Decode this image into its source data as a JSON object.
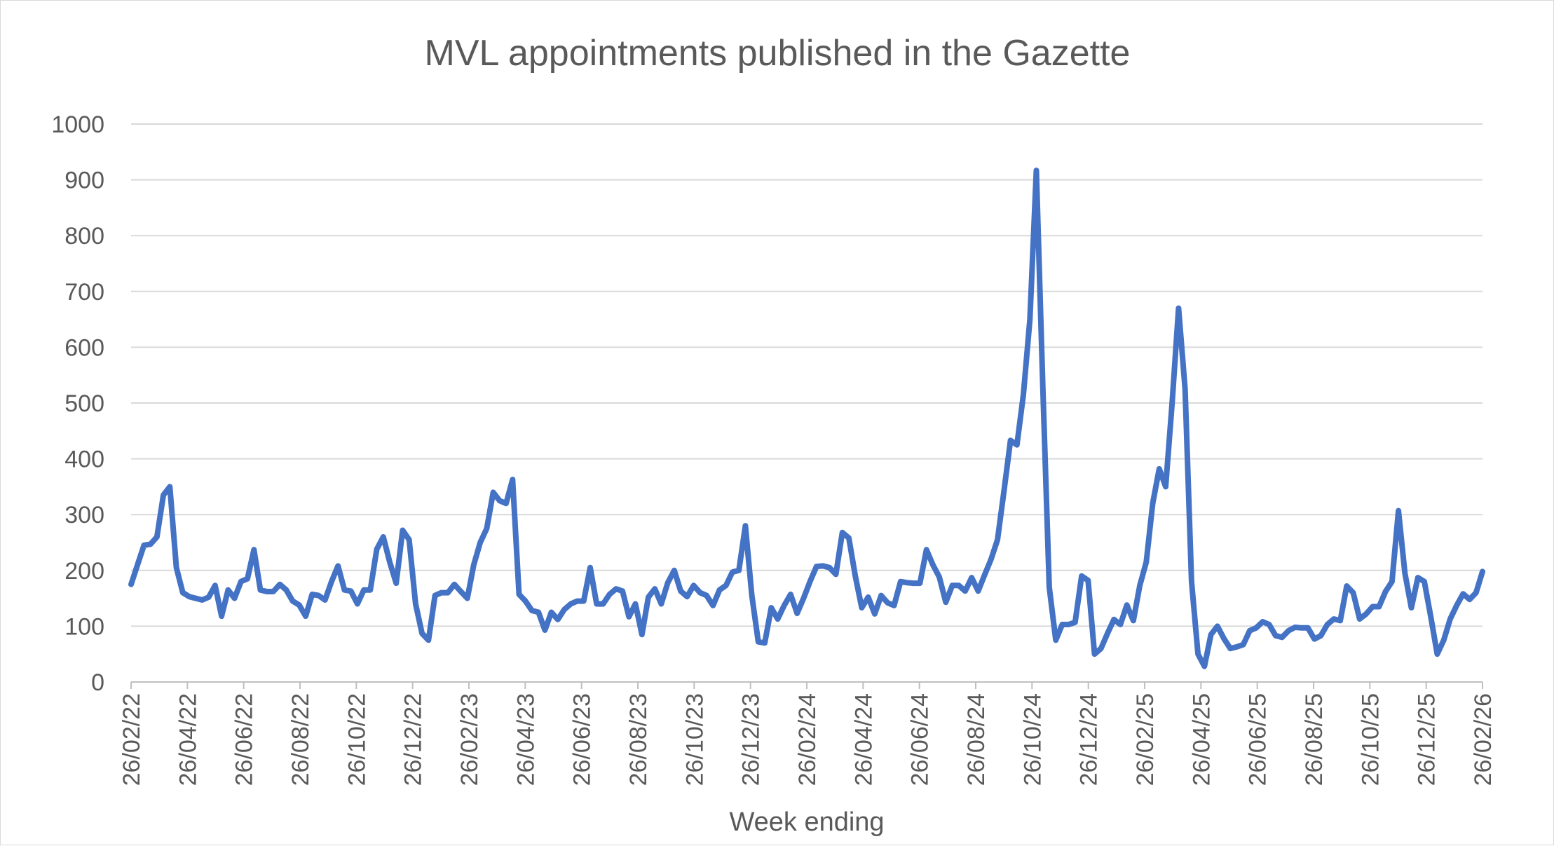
{
  "chart_data": {
    "type": "line",
    "title": "MVL appointments published in the Gazette",
    "xlabel": "Week ending",
    "ylabel": "",
    "ylim": [
      0,
      1000
    ],
    "yticks": [
      0,
      100,
      200,
      300,
      400,
      500,
      600,
      700,
      800,
      900,
      1000
    ],
    "xticks": [
      "26/02/22",
      "26/04/22",
      "26/06/22",
      "26/08/22",
      "26/10/22",
      "26/12/22",
      "26/02/23",
      "26/04/23",
      "26/06/23",
      "26/08/23",
      "26/10/23",
      "26/12/23",
      "26/02/24",
      "26/04/24",
      "26/06/24",
      "26/08/24",
      "26/10/24",
      "26/12/24",
      "26/02/25",
      "26/04/25",
      "26/06/25",
      "26/08/25",
      "26/10/25",
      "26/12/25",
      "26/02/26"
    ],
    "grid": true,
    "legend": "none",
    "color": "#4472c4",
    "series": [
      {
        "values": [
          175,
          210,
          245,
          247,
          260,
          335,
          350,
          205,
          160,
          153,
          150,
          147,
          152,
          173,
          118,
          165,
          150,
          180,
          185,
          237,
          165,
          162,
          162,
          175,
          165,
          145,
          138,
          118,
          157,
          155,
          147,
          180,
          208,
          165,
          163,
          140,
          165,
          165,
          238,
          260,
          215,
          177,
          272,
          255,
          140,
          87,
          75,
          155,
          160,
          160,
          175,
          162,
          150,
          210,
          250,
          275,
          340,
          325,
          320,
          363,
          157,
          145,
          128,
          125,
          93,
          125,
          112,
          130,
          140,
          145,
          145,
          205,
          140,
          140,
          157,
          167,
          163,
          117,
          140,
          85,
          152,
          167,
          140,
          178,
          200,
          163,
          153,
          173,
          160,
          155,
          137,
          165,
          173,
          197,
          200,
          280,
          155,
          72,
          70,
          133,
          113,
          137,
          157,
          123,
          150,
          180,
          207,
          208,
          205,
          193,
          268,
          258,
          190,
          133,
          152,
          122,
          155,
          142,
          137,
          180,
          178,
          177,
          177,
          237,
          210,
          188,
          143,
          173,
          173,
          163,
          187,
          163,
          192,
          220,
          255,
          343,
          433,
          425,
          515,
          650,
          917,
          530,
          170,
          75,
          103,
          103,
          107,
          190,
          182,
          50,
          60,
          87,
          112,
          103,
          138,
          110,
          173,
          215,
          320,
          382,
          350,
          500,
          670,
          525,
          180,
          50,
          28,
          85,
          100,
          78,
          60,
          63,
          67,
          92,
          97,
          108,
          103,
          83,
          80,
          92,
          98,
          97,
          97,
          77,
          83,
          103,
          113,
          110,
          172,
          160,
          113,
          122,
          135,
          135,
          162,
          180,
          307,
          195,
          133,
          187,
          180,
          117,
          50,
          75,
          113,
          137,
          158,
          148,
          160,
          198
        ]
      }
    ]
  }
}
